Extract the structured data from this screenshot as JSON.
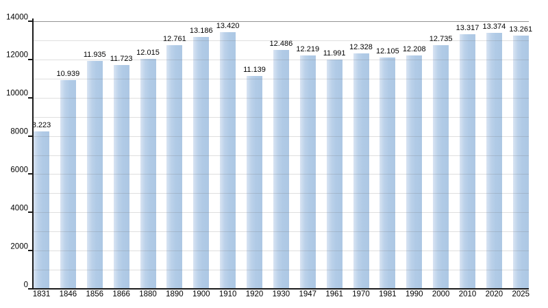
{
  "chart_data": {
    "type": "bar",
    "title": "",
    "xlabel": "",
    "ylabel": "",
    "categories": [
      "1831",
      "1846",
      "1856",
      "1866",
      "1880",
      "1890",
      "1900",
      "1910",
      "1920",
      "1930",
      "1947",
      "1961",
      "1970",
      "1981",
      "1990",
      "2000",
      "2010",
      "2020",
      "2025"
    ],
    "values": [
      8223,
      10939,
      11935,
      11723,
      12015,
      12761,
      13186,
      13420,
      11139,
      12486,
      12219,
      11991,
      12328,
      12105,
      12208,
      12735,
      13317,
      13374,
      13261
    ],
    "value_labels": [
      "8.223",
      "10.939",
      "11.935",
      "11.723",
      "12.015",
      "12.761",
      "13.186",
      "13.420",
      "11.139",
      "12.486",
      "12.219",
      "11.991",
      "12.328",
      "12.105",
      "12.208",
      "12.735",
      "13.317",
      "13.374",
      "13.261"
    ],
    "ylim": [
      0,
      14000
    ],
    "y_tick_step": 2000,
    "y_grid_step": 1000,
    "y_tick_labels": [
      "0",
      "2000",
      "4000",
      "6000",
      "8000",
      "10000",
      "12000",
      "14000"
    ],
    "grid": "horizontal",
    "legend": null,
    "colors": {
      "bar_main": "#b0cae6",
      "bar_highlight": "#d9e4f3",
      "grid_line": "#d8d8d8",
      "top_frame": "#9a9a9a",
      "axis": "#1a1a1a",
      "background": "#ffffff",
      "text": "#000000"
    }
  }
}
